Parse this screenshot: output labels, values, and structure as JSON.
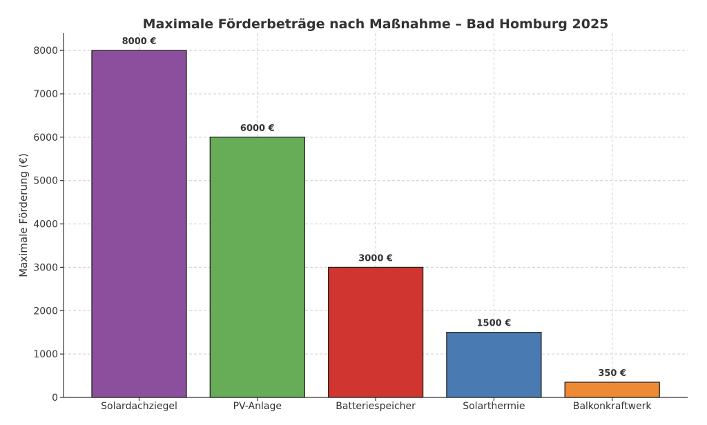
{
  "chart_data": {
    "type": "bar",
    "title": "Maximale Förderbeträge nach Maßnahme – Bad Homburg 2025",
    "xlabel": "",
    "ylabel": "Maximale Förderung (€)",
    "ylim": [
      0,
      8400
    ],
    "yticks": [
      0,
      1000,
      2000,
      3000,
      4000,
      5000,
      6000,
      7000,
      8000
    ],
    "grid": true,
    "categories": [
      "Solardachziegel",
      "PV-Anlage",
      "Batteriespeicher",
      "Solarthermie",
      "Balkonkraftwerk"
    ],
    "values": [
      8000,
      6000,
      3000,
      1500,
      350
    ],
    "data_labels": [
      "8000 €",
      "6000 €",
      "3000 €",
      "1500 €",
      "350 €"
    ],
    "colors": [
      "#8b4f9d",
      "#67ad57",
      "#d1352f",
      "#4a7ab2",
      "#ef8a34"
    ]
  }
}
